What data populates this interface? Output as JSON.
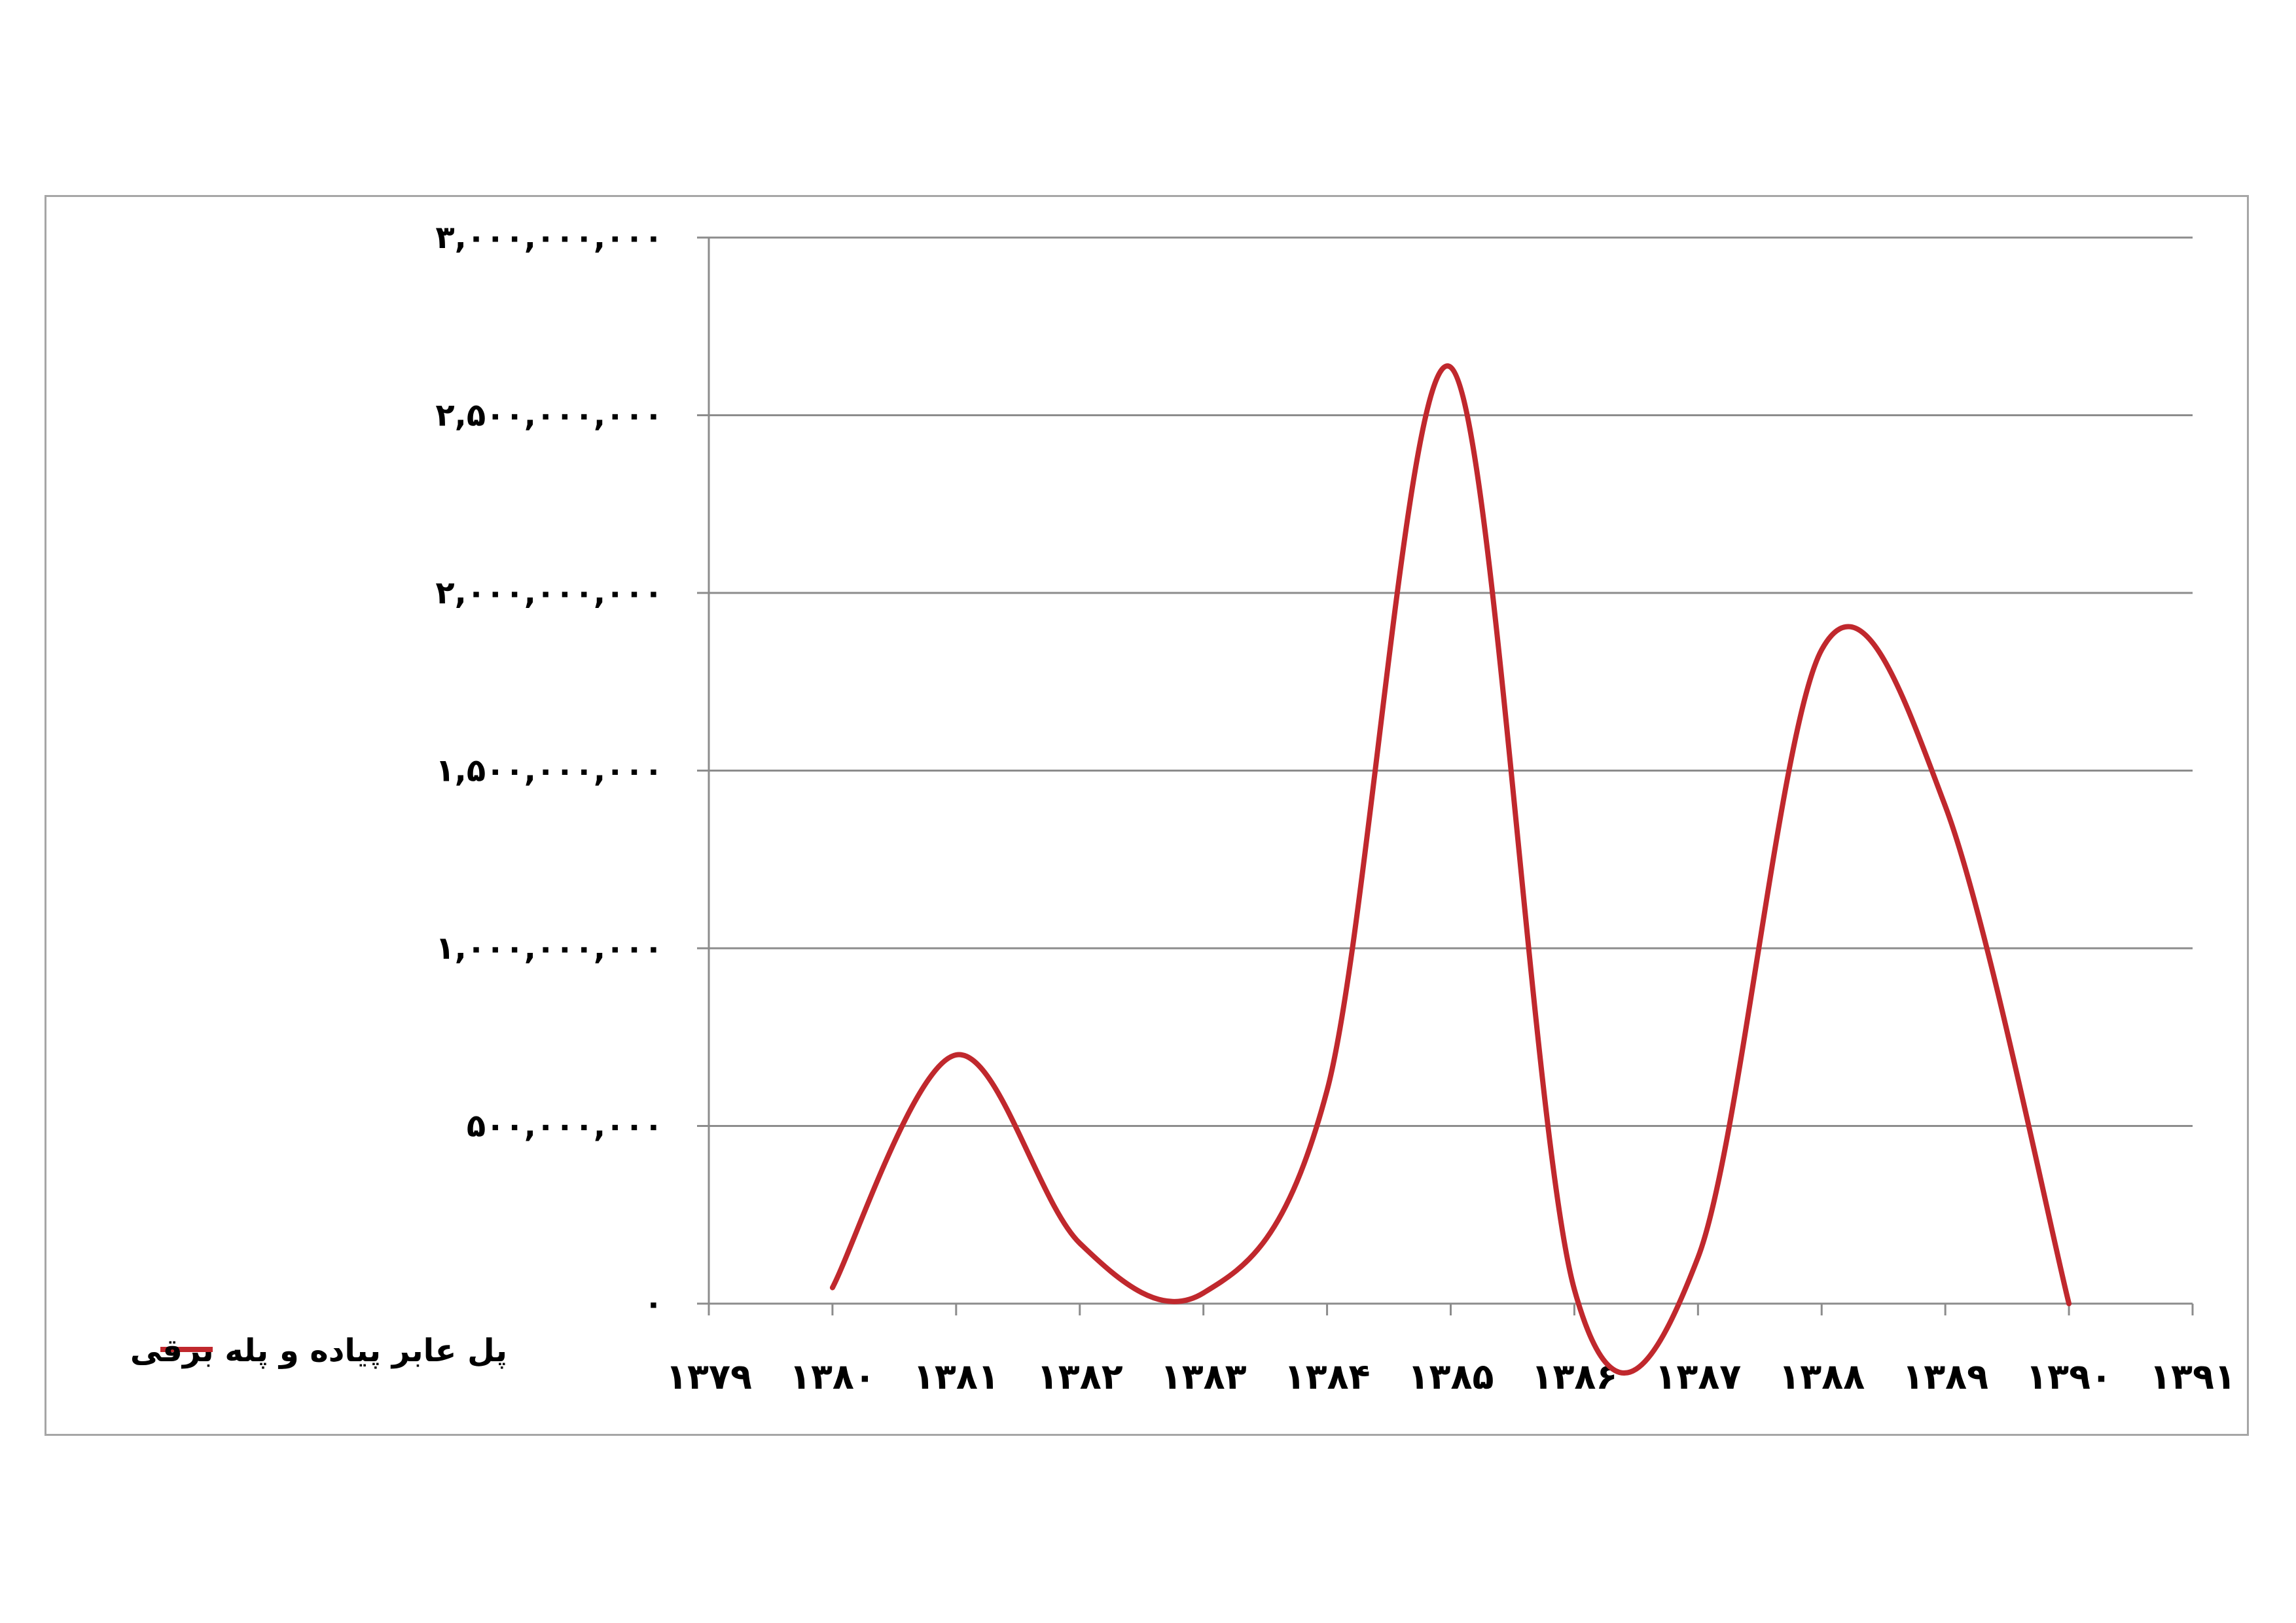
{
  "chart_data": {
    "type": "line",
    "smooth": true,
    "title": "",
    "xlabel": "",
    "ylabel": "",
    "x": [
      "۱۳۷۹",
      "۱۳۸۰",
      "۱۳۸۱",
      "۱۳۸۲",
      "۱۳۸۳",
      "۱۳۸۴",
      "۱۳۸۵",
      "۱۳۸۶",
      "۱۳۸۷",
      "۱۳۸۸",
      "۱۳۸۹",
      "۱۳۹۰",
      "۱۳۹۱"
    ],
    "series": [
      {
        "name": "پل عابر پیاده و پله برقی",
        "color": "#c0282d",
        "values": [
          null,
          45000000,
          700000000,
          170000000,
          30000000,
          600000000,
          2635000000,
          40000000,
          130000000,
          1840000000,
          1400000000,
          0,
          null
        ]
      }
    ],
    "y_ticks": [
      {
        "value": 0,
        "label": "۰"
      },
      {
        "value": 500000000,
        "label": "۵۰۰,۰۰۰,۰۰۰"
      },
      {
        "value": 1000000000,
        "label": "۱,۰۰۰,۰۰۰,۰۰۰"
      },
      {
        "value": 1500000000,
        "label": "۱,۵۰۰,۰۰۰,۰۰۰"
      },
      {
        "value": 2000000000,
        "label": "۲,۰۰۰,۰۰۰,۰۰۰"
      },
      {
        "value": 2500000000,
        "label": "۲,۵۰۰,۰۰۰,۰۰۰"
      },
      {
        "value": 3000000000,
        "label": "۳,۰۰۰,۰۰۰,۰۰۰"
      }
    ],
    "ylim": [
      0,
      3000000000
    ],
    "grid": {
      "horizontal": true,
      "vertical": false,
      "color": "#8c8c8c"
    },
    "legend": {
      "position": "bottom-left"
    }
  }
}
